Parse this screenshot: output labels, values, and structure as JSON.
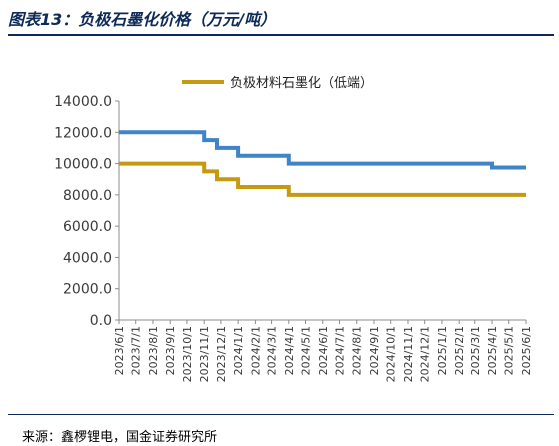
{
  "figure": {
    "title": "图表13：负极石墨化价格（万元/吨）",
    "source": "来源：鑫椤锂电，国金证券研究所"
  },
  "chart_data": {
    "type": "line",
    "title": "",
    "xlabel": "",
    "ylabel": "",
    "legend_position": "top",
    "grid": false,
    "ylim": [
      0,
      14000
    ],
    "yticks": [
      "0.0",
      "2000.0",
      "4000.0",
      "6000.0",
      "8000.0",
      "10000.0",
      "12000.0",
      "14000.0"
    ],
    "categories": [
      "2023/6/1",
      "2023/7/1",
      "2023/8/1",
      "2023/9/1",
      "2023/10/1",
      "2023/11/1",
      "2023/12/1",
      "2024/1/1",
      "2024/2/1",
      "2024/3/1",
      "2024/4/1",
      "2024/5/1",
      "2024/6/1",
      "2024/7/1",
      "2024/8/1",
      "2024/9/1",
      "2024/10/1",
      "2024/11/1",
      "2024/12/1",
      "2025/1/1",
      "2025/2/1",
      "2025/3/1",
      "2025/4/1",
      "2025/5/1",
      "2025/6/1"
    ],
    "series": [
      {
        "name": "",
        "color": "#3f84c8",
        "points": [
          [
            "2023/6/1",
            12000
          ],
          [
            "2023/11/1",
            12000
          ],
          [
            "2023/11/1",
            11500
          ],
          [
            "2023/11/24",
            11500
          ],
          [
            "2023/11/24",
            11000
          ],
          [
            "2024/1/1",
            11000
          ],
          [
            "2024/1/1",
            10500
          ],
          [
            "2024/4/1",
            10500
          ],
          [
            "2024/4/1",
            10000
          ],
          [
            "2025/4/1",
            10000
          ],
          [
            "2025/4/1",
            9750
          ],
          [
            "2025/6/1",
            9750
          ]
        ]
      },
      {
        "name": "负极材料石墨化（低端）",
        "color": "#c59a10",
        "points": [
          [
            "2023/6/1",
            10000
          ],
          [
            "2023/11/1",
            10000
          ],
          [
            "2023/11/1",
            9500
          ],
          [
            "2023/11/24",
            9500
          ],
          [
            "2023/11/24",
            9000
          ],
          [
            "2024/1/1",
            9000
          ],
          [
            "2024/1/1",
            8500
          ],
          [
            "2024/4/1",
            8500
          ],
          [
            "2024/4/1",
            8000
          ],
          [
            "2025/6/1",
            8000
          ]
        ]
      }
    ]
  }
}
